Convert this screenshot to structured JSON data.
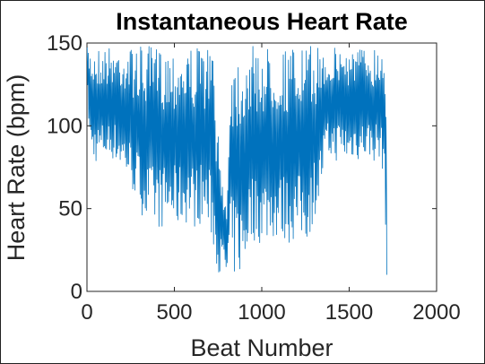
{
  "chart_data": {
    "type": "line",
    "title": "Instantaneous Heart Rate",
    "xlabel": "Beat Number",
    "ylabel": "Heart Rate (bpm)",
    "xlim": [
      0,
      2000
    ],
    "ylim": [
      0,
      150
    ],
    "xticks": [
      "0",
      "500",
      "1000",
      "1500",
      "2000"
    ],
    "yticks": [
      "0",
      "50",
      "100",
      "150"
    ],
    "grid": false,
    "series_color": "#0072BD",
    "series": [
      {
        "x": [
          1,
          20,
          40,
          60,
          80,
          100,
          120,
          140,
          160,
          180,
          200,
          220,
          240,
          260,
          280,
          300,
          320,
          340,
          360,
          380,
          400,
          420,
          440,
          460,
          480,
          500,
          520,
          540,
          560,
          580,
          600,
          620,
          640,
          660,
          680,
          700,
          720,
          740,
          760,
          780,
          800,
          820,
          840,
          860,
          880,
          900,
          920,
          940,
          960,
          980,
          1000,
          1020,
          1040,
          1060,
          1080,
          1100,
          1120,
          1140,
          1160,
          1180,
          1200,
          1220,
          1240,
          1260,
          1280,
          1300,
          1320,
          1340,
          1360,
          1380,
          1400,
          1420,
          1440,
          1460,
          1480,
          1500,
          1520,
          1540,
          1560,
          1580,
          1600,
          1620,
          1640,
          1660,
          1680,
          1700,
          1715
        ],
        "low": [
          120,
          80,
          77,
          78,
          77,
          80,
          78,
          80,
          78,
          75,
          72,
          70,
          65,
          60,
          55,
          50,
          45,
          40,
          40,
          38,
          38,
          38,
          38,
          38,
          40,
          38,
          38,
          40,
          40,
          42,
          40,
          38,
          40,
          42,
          38,
          35,
          28,
          15,
          10,
          10,
          8,
          12,
          8,
          10,
          8,
          10,
          25,
          30,
          30,
          28,
          30,
          30,
          30,
          32,
          30,
          30,
          30,
          30,
          28,
          30,
          30,
          30,
          30,
          30,
          35,
          45,
          50,
          60,
          75,
          78,
          80,
          78,
          80,
          80,
          78,
          75,
          80,
          80,
          78,
          80,
          80,
          80,
          78,
          80,
          75,
          72,
          10
        ],
        "high": [
          148,
          148,
          148,
          148,
          148,
          148,
          148,
          148,
          148,
          148,
          148,
          148,
          148,
          148,
          148,
          148,
          148,
          148,
          148,
          148,
          148,
          148,
          148,
          148,
          148,
          148,
          148,
          148,
          148,
          148,
          148,
          148,
          148,
          148,
          148,
          148,
          148,
          110,
          80,
          70,
          50,
          145,
          145,
          145,
          145,
          148,
          148,
          148,
          148,
          148,
          148,
          148,
          148,
          148,
          148,
          148,
          148,
          148,
          148,
          148,
          148,
          148,
          148,
          148,
          148,
          148,
          148,
          148,
          148,
          148,
          148,
          148,
          148,
          148,
          148,
          148,
          148,
          148,
          148,
          148,
          148,
          148,
          148,
          148,
          148,
          148,
          125
        ]
      }
    ]
  }
}
